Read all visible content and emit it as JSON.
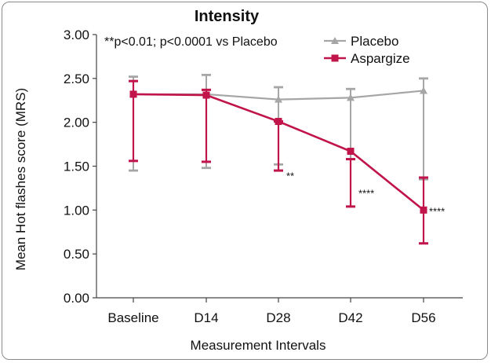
{
  "chart_data": {
    "type": "line",
    "title": "Intensity",
    "xlabel": "Measurement Intervals",
    "ylabel": "Mean Hot flashes score (MRS)",
    "annotation": "**p<0.01; p<0.0001 vs Placebo",
    "categories": [
      "Baseline",
      "D14",
      "D28",
      "D42",
      "D56"
    ],
    "ylim": [
      0,
      3
    ],
    "yticks": [
      "0.00",
      "0.50",
      "1.00",
      "1.50",
      "2.00",
      "2.50",
      "3.00"
    ],
    "ytick_values": [
      0,
      0.5,
      1,
      1.5,
      2,
      2.5,
      3
    ],
    "legend_position": "top-right",
    "series": [
      {
        "name": "Placebo",
        "color": "#a6a6a6",
        "marker": "triangle",
        "values": [
          2.32,
          2.32,
          2.26,
          2.28,
          2.36
        ],
        "err_low": [
          1.45,
          1.48,
          1.52,
          1.58,
          1.35
        ],
        "err_high": [
          2.52,
          2.54,
          2.4,
          2.38,
          2.5
        ]
      },
      {
        "name": "Aspargize",
        "color": "#c0144a",
        "marker": "square",
        "values": [
          2.32,
          2.31,
          2.01,
          1.67,
          1.0
        ],
        "err_low": [
          1.56,
          1.55,
          1.45,
          1.04,
          0.62
        ],
        "err_high": [
          2.47,
          2.37,
          2.01,
          1.58,
          1.37
        ]
      }
    ],
    "significance": [
      {
        "category": "D28",
        "label": "**"
      },
      {
        "category": "D42",
        "label": "****"
      },
      {
        "category": "D56",
        "label": "****"
      }
    ]
  }
}
